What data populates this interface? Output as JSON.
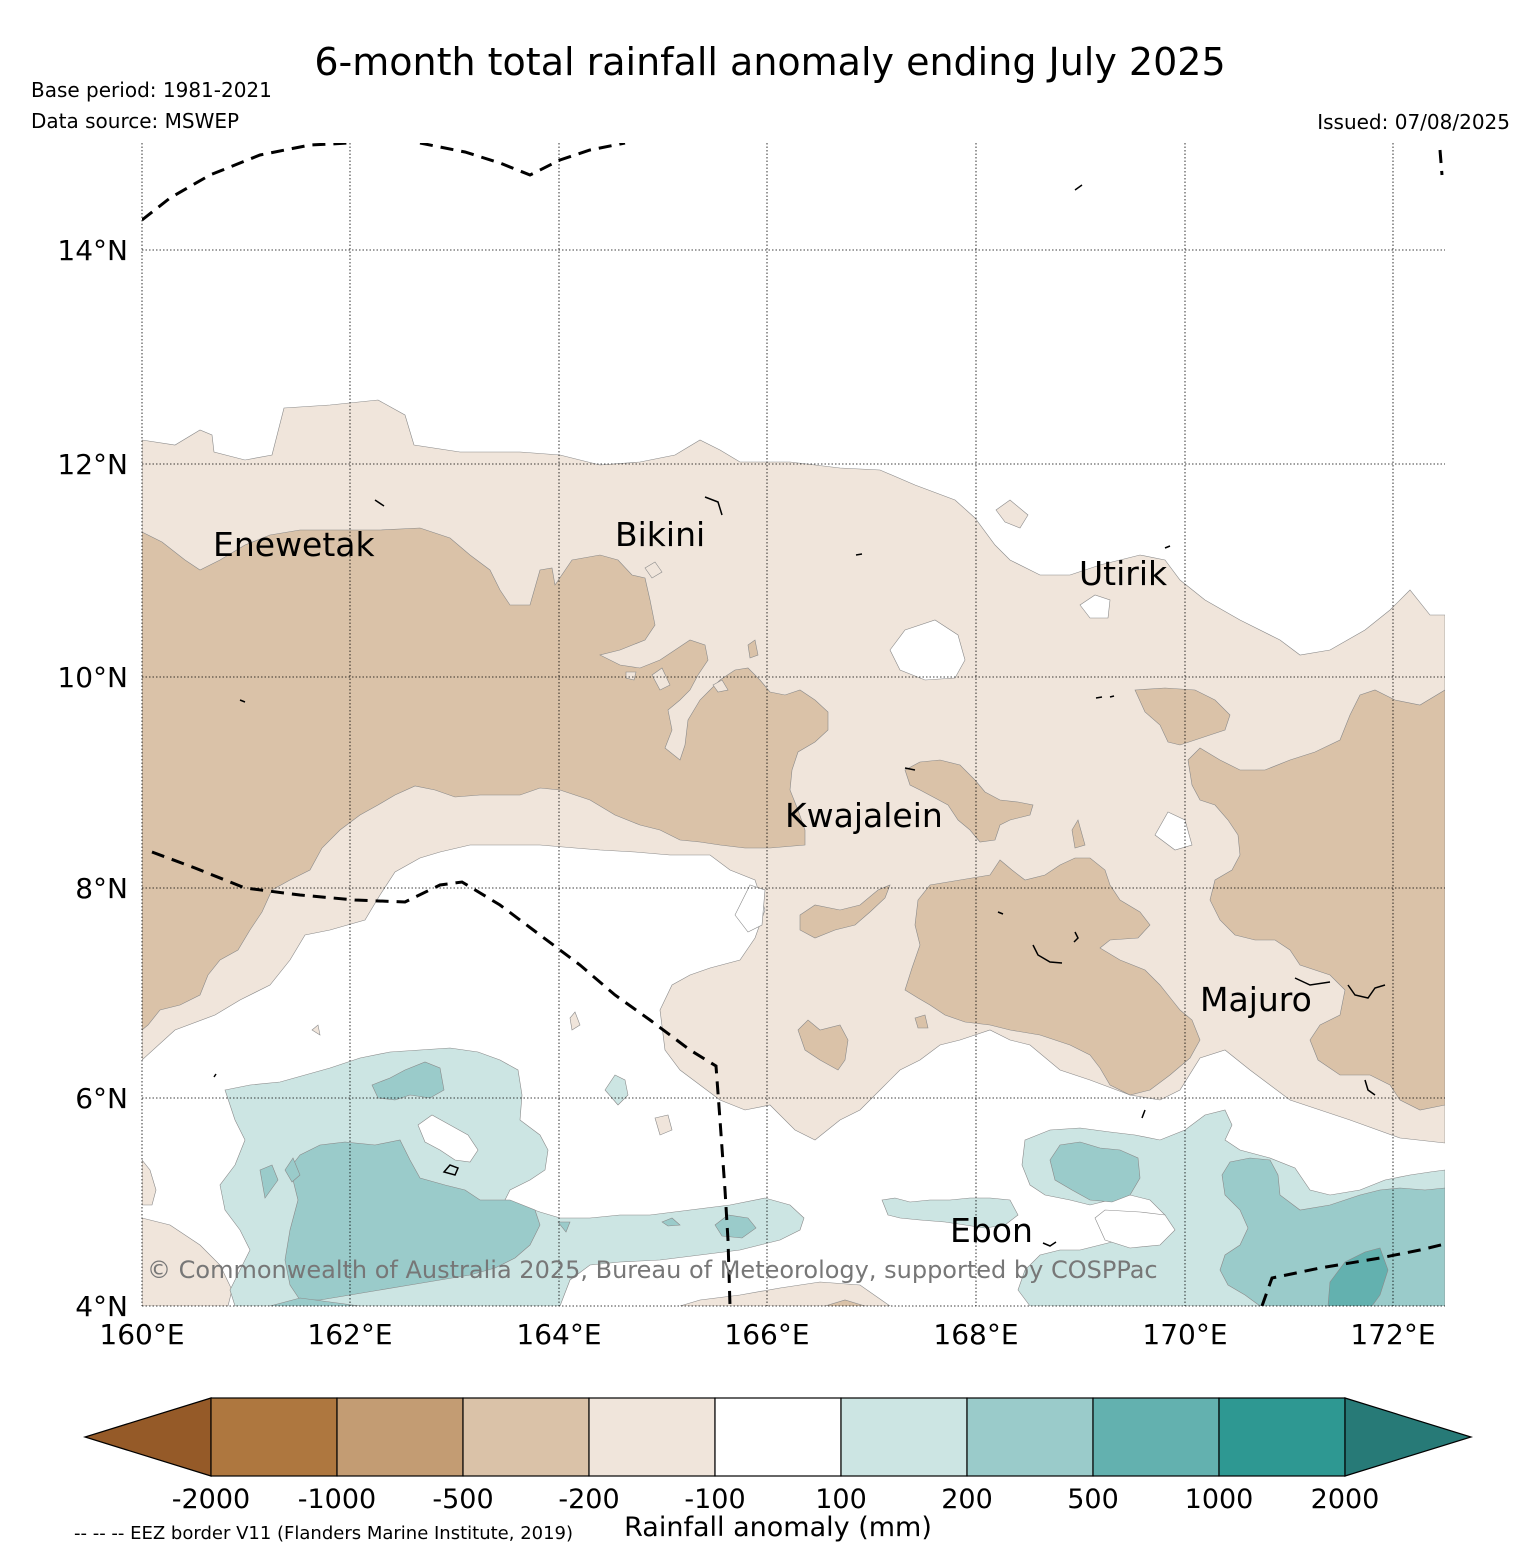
{
  "title": "6-month total rainfall anomaly ending July 2025",
  "base_period": "Base period: 1981-2021",
  "data_source": "Data source: MSWEP",
  "issued": "Issued: 07/08/2025",
  "copyright": "© Commonwealth of Australia 2025, Bureau of Meteorology, supported by COSPPac",
  "eez_note": "-- -- -- EEZ border V11 (Flanders Marine Institute, 2019)",
  "lat_labels": [
    "14°N",
    "12°N",
    "10°N",
    "8°N",
    "6°N",
    "4°N"
  ],
  "lon_labels": [
    "160°E",
    "162°E",
    "164°E",
    "166°E",
    "168°E",
    "170°E",
    "172°E"
  ],
  "places": {
    "enewetak": "Enewetak",
    "bikini": "Bikini",
    "utirik": "Utirik",
    "kwajalein": "Kwajalein",
    "majuro": "Majuro",
    "ebon": "Ebon"
  },
  "colorbar": {
    "label": "Rainfall anomaly (mm)",
    "ticks": [
      "-2000",
      "-1000",
      "-500",
      "-200",
      "-100",
      "100",
      "200",
      "500",
      "1000",
      "2000"
    ],
    "colors": [
      "#955a28",
      "#ae773f",
      "#c39c73",
      "#dac2a8",
      "#f0e5db",
      "#ffffff",
      "#cce5e3",
      "#9acbca",
      "#63b1af",
      "#2e9892",
      "#277a77"
    ]
  },
  "map_extent": {
    "lon": [
      160,
      172.5
    ],
    "lat": [
      4,
      15
    ]
  }
}
